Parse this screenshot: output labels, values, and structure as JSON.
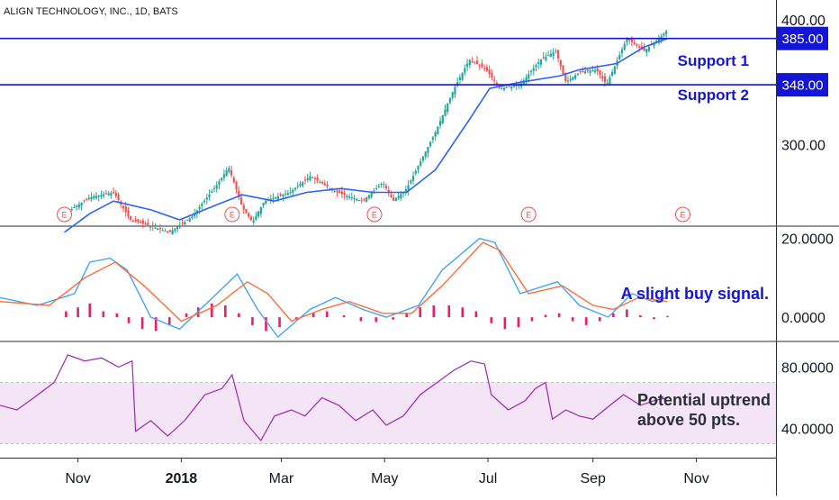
{
  "header": {
    "symbol_label": "ALIGN TECHNOLOGY, INC., 1D, BATS"
  },
  "colors": {
    "up": "#26a69a",
    "down": "#ef5350",
    "ma": "#2962ff",
    "support": "#1515d6",
    "badge": "#1515d6",
    "macd": "#42a5f5",
    "signal": "#ff6d3a",
    "hist": "#e91e63",
    "rsi": "#9c27b0",
    "rsi_band": "#f3e5f5",
    "earnings": "#ef5350",
    "annotation": "#1515d6"
  },
  "chart_data": [
    {
      "type": "candlestick",
      "panel": "price",
      "title": "",
      "ylim": [
        240,
        410
      ],
      "y_ticks": [
        300,
        400
      ],
      "y_tick_labels": [
        "300.00",
        "400.00"
      ],
      "x_ticks": [
        "Nov",
        "2018",
        "Mar",
        "May",
        "Jul",
        "Sep",
        "Nov"
      ],
      "x_tick_dates": [
        "2017-11-01",
        "2018-01-01",
        "2018-03-01",
        "2018-05-01",
        "2018-07-01",
        "2018-09-01",
        "2018-11-01"
      ],
      "x_range": [
        "2017-09-16",
        "2018-12-18"
      ],
      "support_lines": [
        {
          "name": "Support 1",
          "value": 385,
          "badge_label": "385.00"
        },
        {
          "name": "Support 2",
          "value": 348,
          "badge_label": "348.00"
        }
      ],
      "earnings_marker_label": "E",
      "earnings_dates": [
        "2017-10-24",
        "2018-01-31",
        "2018-04-25",
        "2018-07-25",
        "2018-10-24"
      ],
      "close_series": [
        [
          "2017-10-24",
          245
        ],
        [
          "2017-11-08",
          258
        ],
        [
          "2017-11-22",
          262
        ],
        [
          "2017-12-02",
          240
        ],
        [
          "2017-12-14",
          235
        ],
        [
          "2017-12-25",
          230
        ],
        [
          "2018-01-07",
          242
        ],
        [
          "2018-01-22",
          268
        ],
        [
          "2018-01-29",
          282
        ],
        [
          "2018-02-06",
          250
        ],
        [
          "2018-02-12",
          238
        ],
        [
          "2018-02-19",
          255
        ],
        [
          "2018-03-06",
          262
        ],
        [
          "2018-03-18",
          275
        ],
        [
          "2018-04-03",
          262
        ],
        [
          "2018-04-18",
          255
        ],
        [
          "2018-04-30",
          270
        ],
        [
          "2018-05-06",
          255
        ],
        [
          "2018-05-14",
          265
        ],
        [
          "2018-05-31",
          310
        ],
        [
          "2018-06-11",
          345
        ],
        [
          "2018-06-20",
          368
        ],
        [
          "2018-06-30",
          360
        ],
        [
          "2018-07-08",
          345
        ],
        [
          "2018-07-20",
          348
        ],
        [
          "2018-08-01",
          368
        ],
        [
          "2018-08-10",
          375
        ],
        [
          "2018-08-16",
          350
        ],
        [
          "2018-08-24",
          358
        ],
        [
          "2018-09-03",
          360
        ],
        [
          "2018-09-09",
          348
        ],
        [
          "2018-09-21",
          385
        ],
        [
          "2018-10-01",
          375
        ],
        [
          "2018-10-10",
          385
        ],
        [
          "2018-10-15",
          392
        ]
      ],
      "moving_average": [
        [
          "2017-10-24",
          230
        ],
        [
          "2017-11-08",
          245
        ],
        [
          "2017-11-22",
          255
        ],
        [
          "2017-12-14",
          248
        ],
        [
          "2017-12-31",
          240
        ],
        [
          "2018-01-22",
          252
        ],
        [
          "2018-02-06",
          260
        ],
        [
          "2018-02-25",
          255
        ],
        [
          "2018-03-16",
          262
        ],
        [
          "2018-04-05",
          265
        ],
        [
          "2018-04-24",
          262
        ],
        [
          "2018-05-14",
          262
        ],
        [
          "2018-05-31",
          280
        ],
        [
          "2018-06-20",
          320
        ],
        [
          "2018-07-02",
          345
        ],
        [
          "2018-07-20",
          350
        ],
        [
          "2018-08-12",
          355
        ],
        [
          "2018-08-24",
          360
        ],
        [
          "2018-09-15",
          365
        ],
        [
          "2018-10-01",
          378
        ],
        [
          "2018-10-15",
          385
        ]
      ]
    },
    {
      "type": "line",
      "panel": "macd",
      "title": "",
      "ylim": [
        -5,
        22
      ],
      "y_ticks": [
        20,
        0
      ],
      "y_tick_labels": [
        "20.0000",
        "0.0000"
      ],
      "annotation": "A slight buy signal.",
      "series": [
        {
          "key": "macd",
          "values": [
            [
              "2017-09-16",
              5
            ],
            [
              "2017-10-08",
              3
            ],
            [
              "2017-10-30",
              6
            ],
            [
              "2017-11-08",
              14
            ],
            [
              "2017-11-20",
              15
            ],
            [
              "2017-11-30",
              12
            ],
            [
              "2017-12-14",
              0
            ],
            [
              "2017-12-31",
              -3
            ],
            [
              "2018-01-22",
              6
            ],
            [
              "2018-02-03",
              11
            ],
            [
              "2018-02-15",
              2
            ],
            [
              "2018-02-27",
              -5
            ],
            [
              "2018-03-18",
              2
            ],
            [
              "2018-04-02",
              5
            ],
            [
              "2018-04-18",
              2
            ],
            [
              "2018-05-02",
              0
            ],
            [
              "2018-05-21",
              3
            ],
            [
              "2018-06-04",
              12
            ],
            [
              "2018-06-26",
              20
            ],
            [
              "2018-07-05",
              19
            ],
            [
              "2018-07-20",
              6
            ],
            [
              "2018-08-11",
              9
            ],
            [
              "2018-08-24",
              3
            ],
            [
              "2018-09-10",
              0
            ],
            [
              "2018-09-24",
              6
            ],
            [
              "2018-10-06",
              4
            ],
            [
              "2018-10-15",
              5
            ]
          ]
        },
        {
          "key": "signal",
          "values": [
            [
              "2017-09-16",
              4
            ],
            [
              "2017-10-15",
              3
            ],
            [
              "2017-11-05",
              10
            ],
            [
              "2017-11-23",
              14
            ],
            [
              "2017-12-10",
              8
            ],
            [
              "2018-01-01",
              -1
            ],
            [
              "2018-01-22",
              3
            ],
            [
              "2018-02-09",
              9
            ],
            [
              "2018-02-21",
              6
            ],
            [
              "2018-03-07",
              -1
            ],
            [
              "2018-03-25",
              2
            ],
            [
              "2018-04-10",
              4
            ],
            [
              "2018-04-30",
              1
            ],
            [
              "2018-05-17",
              1
            ],
            [
              "2018-06-04",
              8
            ],
            [
              "2018-06-28",
              19
            ],
            [
              "2018-07-08",
              17
            ],
            [
              "2018-07-25",
              6
            ],
            [
              "2018-08-14",
              8
            ],
            [
              "2018-09-01",
              3
            ],
            [
              "2018-09-13",
              2
            ],
            [
              "2018-09-28",
              5
            ],
            [
              "2018-10-15",
              4
            ]
          ]
        }
      ],
      "histogram": [
        [
          "2017-10-25",
          1.5
        ],
        [
          "2017-11-01",
          2.5
        ],
        [
          "2017-11-08",
          3.5
        ],
        [
          "2017-11-16",
          1.5
        ],
        [
          "2017-11-24",
          1
        ],
        [
          "2017-12-01",
          -1.5
        ],
        [
          "2017-12-09",
          -3
        ],
        [
          "2017-12-17",
          -3.5
        ],
        [
          "2017-12-25",
          -2
        ],
        [
          "2018-01-04",
          1
        ],
        [
          "2018-01-11",
          2.5
        ],
        [
          "2018-01-19",
          3.5
        ],
        [
          "2018-01-27",
          3
        ],
        [
          "2018-02-04",
          1
        ],
        [
          "2018-02-12",
          -2
        ],
        [
          "2018-02-20",
          -3.5
        ],
        [
          "2018-02-28",
          -2.5
        ],
        [
          "2018-03-10",
          -0.5
        ],
        [
          "2018-03-20",
          1
        ],
        [
          "2018-03-28",
          1.5
        ],
        [
          "2018-04-07",
          0.5
        ],
        [
          "2018-04-17",
          -1
        ],
        [
          "2018-04-26",
          -1.2
        ],
        [
          "2018-05-06",
          -0.6
        ],
        [
          "2018-05-14",
          1
        ],
        [
          "2018-05-22",
          2.5
        ],
        [
          "2018-05-30",
          3
        ],
        [
          "2018-06-08",
          3
        ],
        [
          "2018-06-16",
          2.5
        ],
        [
          "2018-06-24",
          1.5
        ],
        [
          "2018-07-03",
          -1.5
        ],
        [
          "2018-07-11",
          -3
        ],
        [
          "2018-07-19",
          -2.5
        ],
        [
          "2018-07-27",
          -1
        ],
        [
          "2018-08-04",
          0.6
        ],
        [
          "2018-08-12",
          1
        ],
        [
          "2018-08-20",
          -1
        ],
        [
          "2018-08-28",
          -2
        ],
        [
          "2018-09-05",
          -1
        ],
        [
          "2018-09-13",
          1
        ],
        [
          "2018-09-21",
          2
        ],
        [
          "2018-09-29",
          0.5
        ],
        [
          "2018-10-07",
          -0.5
        ],
        [
          "2018-10-15",
          0.3
        ]
      ]
    },
    {
      "type": "line",
      "panel": "rsi",
      "title": "",
      "ylim": [
        22,
        95
      ],
      "y_ticks": [
        80,
        40
      ],
      "y_tick_labels": [
        "80.0000",
        "40.0000"
      ],
      "band": [
        30,
        70
      ],
      "annotation_lines": [
        "Potential uptrend",
        "above 50 pts."
      ],
      "series": [
        {
          "key": "rsi",
          "values": [
            [
              "2017-09-16",
              55
            ],
            [
              "2017-09-26",
              52
            ],
            [
              "2017-10-06",
              60
            ],
            [
              "2017-10-18",
              70
            ],
            [
              "2017-10-26",
              88
            ],
            [
              "2017-11-05",
              84
            ],
            [
              "2017-11-15",
              86
            ],
            [
              "2017-11-25",
              80
            ],
            [
              "2017-12-03",
              84
            ],
            [
              "2017-12-05",
              38
            ],
            [
              "2017-12-14",
              45
            ],
            [
              "2017-12-24",
              35
            ],
            [
              "2018-01-03",
              45
            ],
            [
              "2018-01-15",
              62
            ],
            [
              "2018-01-25",
              66
            ],
            [
              "2018-01-31",
              75
            ],
            [
              "2018-02-07",
              45
            ],
            [
              "2018-02-17",
              32
            ],
            [
              "2018-02-25",
              48
            ],
            [
              "2018-03-07",
              52
            ],
            [
              "2018-03-15",
              48
            ],
            [
              "2018-03-25",
              60
            ],
            [
              "2018-04-04",
              55
            ],
            [
              "2018-04-14",
              45
            ],
            [
              "2018-04-24",
              52
            ],
            [
              "2018-05-02",
              42
            ],
            [
              "2018-05-12",
              48
            ],
            [
              "2018-05-22",
              62
            ],
            [
              "2018-06-01",
              70
            ],
            [
              "2018-06-11",
              78
            ],
            [
              "2018-06-21",
              84
            ],
            [
              "2018-06-29",
              82
            ],
            [
              "2018-07-03",
              62
            ],
            [
              "2018-07-13",
              52
            ],
            [
              "2018-07-23",
              58
            ],
            [
              "2018-07-29",
              66
            ],
            [
              "2018-08-04",
              70
            ],
            [
              "2018-08-08",
              46
            ],
            [
              "2018-08-16",
              52
            ],
            [
              "2018-08-24",
              48
            ],
            [
              "2018-09-01",
              46
            ],
            [
              "2018-09-11",
              55
            ],
            [
              "2018-09-19",
              62
            ],
            [
              "2018-09-29",
              55
            ],
            [
              "2018-10-07",
              58
            ],
            [
              "2018-10-15",
              60
            ]
          ]
        }
      ]
    }
  ]
}
